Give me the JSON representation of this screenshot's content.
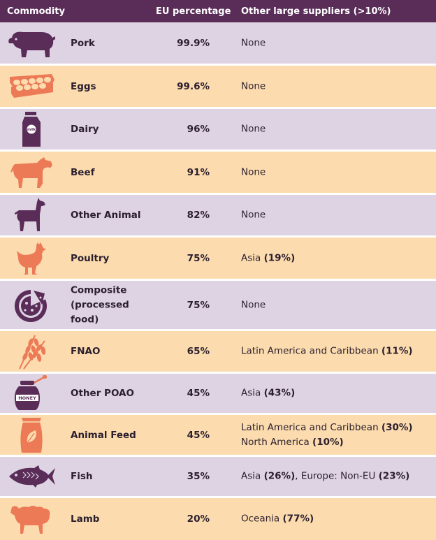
{
  "header": {
    "commodity": "Commodity",
    "eu_percentage": "EU percentage",
    "other_suppliers": "Other large suppliers (>10%)"
  },
  "colors": {
    "header_bg": "#5a2c58",
    "row_purple": "#ddd3e2",
    "row_orange": "#fcdcae",
    "icon_purple": "#5a2c58",
    "icon_orange": "#ec7a56"
  },
  "rows": [
    {
      "icon": "pig-icon",
      "name": "Pork",
      "pct": "99.9%",
      "suppliers": [
        {
          "text": "None",
          "bold": ""
        }
      ]
    },
    {
      "icon": "egg-carton-icon",
      "name": "Eggs",
      "pct": "99.6%",
      "suppliers": [
        {
          "text": "None",
          "bold": ""
        }
      ]
    },
    {
      "icon": "milk-carton-icon",
      "icon_text": "milk",
      "name": "Dairy",
      "pct": "96%",
      "suppliers": [
        {
          "text": "None",
          "bold": ""
        }
      ]
    },
    {
      "icon": "cow-icon",
      "name": "Beef",
      "pct": "91%",
      "suppliers": [
        {
          "text": "None",
          "bold": ""
        }
      ]
    },
    {
      "icon": "llama-icon",
      "name": "Other Animal",
      "pct": "82%",
      "suppliers": [
        {
          "text": "None",
          "bold": ""
        }
      ]
    },
    {
      "icon": "chicken-icon",
      "name": "Poultry",
      "pct": "75%",
      "suppliers": [
        {
          "text": "Asia ",
          "bold": "(19%)"
        }
      ]
    },
    {
      "icon": "pizza-icon",
      "name": "Composite (processed food)",
      "pct": "75%",
      "suppliers": [
        {
          "text": "None",
          "bold": ""
        }
      ]
    },
    {
      "icon": "wheat-icon",
      "name": "FNAO",
      "pct": "65%",
      "suppliers": [
        {
          "text": "Latin America and Caribbean ",
          "bold": "(11%)"
        }
      ]
    },
    {
      "icon": "honey-jar-icon",
      "icon_text": "HONEY",
      "name": "Other POAO",
      "pct": "45%",
      "suppliers": [
        {
          "text": "Asia ",
          "bold": "(43%)"
        }
      ]
    },
    {
      "icon": "feed-sack-icon",
      "name": "Animal Feed",
      "pct": "45%",
      "suppliers": [
        {
          "text": "Latin America and Caribbean ",
          "bold": "(30%)"
        },
        {
          "text": "North America ",
          "bold": "(10%)"
        }
      ]
    },
    {
      "icon": "fish-icon",
      "name": "Fish",
      "pct": "35%",
      "suppliers": [
        {
          "text": "Asia ",
          "bold": "(26%)",
          "text2": ", Europe: Non-EU ",
          "bold2": "(23%)"
        }
      ]
    },
    {
      "icon": "sheep-icon",
      "name": "Lamb",
      "pct": "20%",
      "suppliers": [
        {
          "text": "Oceania ",
          "bold": "(77%)"
        }
      ]
    }
  ]
}
